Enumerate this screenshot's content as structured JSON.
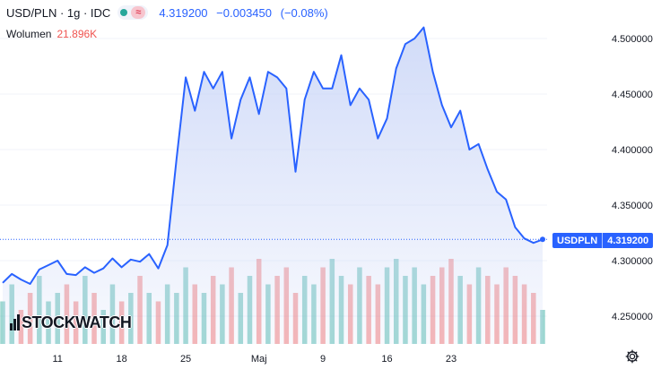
{
  "header": {
    "symbol": "USD/PLN · 1g · IDC",
    "last": "4.319200",
    "change": "−0.003450",
    "change_pct": "(−0.08%)"
  },
  "volume": {
    "label": "Wolumen",
    "value": "21.896K"
  },
  "logo": {
    "text": "STOCKWATCH"
  },
  "price_tag": {
    "symbol": "USDPLN",
    "value": "4.319200"
  },
  "colors": {
    "line": "#2962ff",
    "area_top": "#c9d5f7",
    "volume_up": "#26a69a",
    "volume_down": "#ef5350",
    "text_negative": "#ef5350",
    "axis_text": "#131722"
  },
  "chart_data": {
    "type": "area",
    "ylim": [
      4.225,
      4.525
    ],
    "y_ticks": [
      "4.500000",
      "4.450000",
      "4.400000",
      "4.350000",
      "4.300000",
      "4.250000"
    ],
    "y_tick_values": [
      4.5,
      4.45,
      4.4,
      4.35,
      4.3,
      4.25
    ],
    "x_ticks": [
      "11",
      "18",
      "25",
      "Maj",
      "9",
      "16",
      "23"
    ],
    "x_tick_pos": [
      6,
      13,
      20,
      28,
      35,
      42,
      49
    ],
    "last_value": 4.3192,
    "grid": true,
    "series": [
      {
        "values": [
          4.28,
          4.288,
          4.283,
          4.279,
          4.292,
          4.296,
          4.3,
          4.288,
          4.287,
          4.294,
          4.289,
          4.293,
          4.302,
          4.294,
          4.301,
          4.299,
          4.306,
          4.293,
          4.314,
          4.392,
          4.465,
          4.435,
          4.47,
          4.455,
          4.47,
          4.41,
          4.445,
          4.465,
          4.432,
          4.47,
          4.465,
          4.455,
          4.38,
          4.445,
          4.47,
          4.455,
          4.455,
          4.485,
          4.44,
          4.455,
          4.445,
          4.41,
          4.428,
          4.473,
          4.495,
          4.5,
          4.51,
          4.47,
          4.44,
          4.42,
          4.435,
          4.4,
          4.405,
          4.382,
          4.362,
          4.355,
          4.33,
          4.32,
          4.316,
          4.319
        ],
        "volumes": [
          0.5,
          0.7,
          0.4,
          0.6,
          0.8,
          0.5,
          0.6,
          0.7,
          0.5,
          0.8,
          0.6,
          0.4,
          0.7,
          0.5,
          0.6,
          0.8,
          0.6,
          0.5,
          0.7,
          0.6,
          0.9,
          0.7,
          0.6,
          0.8,
          0.7,
          0.9,
          0.6,
          0.8,
          1.0,
          0.7,
          0.8,
          0.9,
          0.6,
          0.8,
          0.7,
          0.9,
          1.0,
          0.8,
          0.7,
          0.9,
          0.8,
          0.7,
          0.9,
          1.0,
          0.8,
          0.9,
          0.7,
          0.8,
          0.9,
          1.0,
          0.8,
          0.7,
          0.9,
          0.8,
          0.7,
          0.9,
          0.8,
          0.7,
          0.6,
          0.4
        ]
      }
    ]
  }
}
